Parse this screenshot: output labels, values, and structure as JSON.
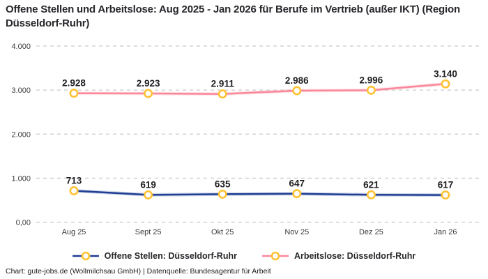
{
  "header": {
    "title": "Offene Stellen und Arbeitslose: Aug 2025 - Jan 2026 für Berufe im Vertrieb (außer IKT) (Region Düsseldorf-Ruhr)"
  },
  "chart_data": {
    "type": "line",
    "title": "Offene Stellen und Arbeitslose: Aug 2025 - Jan 2026 für Berufe im Vertrieb (außer IKT) (Region Düsseldorf-Ruhr)",
    "categories": [
      "Aug 25",
      "Sept 25",
      "Okt 25",
      "Nov 25",
      "Dez 25",
      "Jan 26"
    ],
    "series": [
      {
        "name": "Offene Stellen: Düsseldorf-Ruhr",
        "color": "#1f3e94",
        "values": [
          713,
          619,
          635,
          647,
          621,
          617
        ],
        "value_labels": [
          "713",
          "619",
          "635",
          "647",
          "621",
          "617"
        ]
      },
      {
        "name": "Arbeitslose: Düsseldorf-Ruhr",
        "color": "#f9879b",
        "values": [
          2928,
          2923,
          2911,
          2986,
          2996,
          3140
        ],
        "value_labels": [
          "2.928",
          "2.923",
          "2.911",
          "2.986",
          "2.996",
          "3.140"
        ]
      }
    ],
    "y_ticks": [
      {
        "value": 4000,
        "label": "4.000"
      },
      {
        "value": 3000,
        "label": "3.000"
      },
      {
        "value": 2000,
        "label": "2.000"
      },
      {
        "value": 1000,
        "label": "1.000"
      },
      {
        "value": 0,
        "label": "0,00"
      }
    ],
    "ylim": [
      0,
      4000
    ],
    "xlabel": "",
    "ylabel": "",
    "grid": "horizontal-dashed",
    "grid_color": "#c9c9c9",
    "marker_ring_color": "#ffc233",
    "marker_fill_color": "#ffffff",
    "legend_position": "bottom-center"
  },
  "footer": {
    "credit": "Chart: gute-jobs.de (Wollmilchsau GmbH) | Datenquelle: Bundesagentur für Arbeit"
  }
}
